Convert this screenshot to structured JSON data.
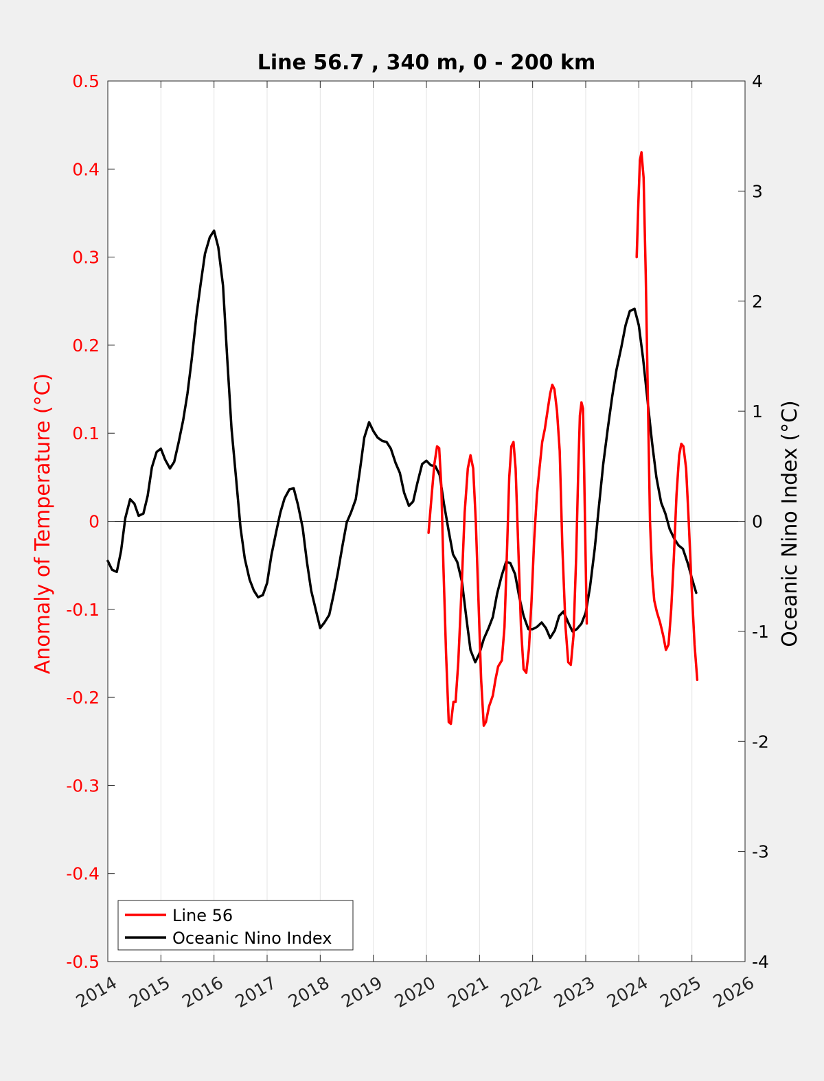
{
  "colors": {
    "background": "#f0f0f0",
    "plot_background": "#ffffff",
    "line56": "#ff0000",
    "oni": "#000000",
    "grid": "#e3e3e3",
    "left_axis": "#ff0000",
    "right_axis": "#000000"
  },
  "chart_data": {
    "type": "line",
    "title": "Line 56.7 , 340 m, 0 - 200 km",
    "ylabel_left": "Anomaly of Temperature (°C)",
    "ylabel_right": "Oceanic Nino Index (°C)",
    "xlabel": "",
    "xlim": [
      2014,
      2026
    ],
    "ylim_left": [
      -0.5,
      0.5
    ],
    "ylim_right": [
      -4,
      4
    ],
    "x_ticks": [
      "2014",
      "2015",
      "2016",
      "2017",
      "2018",
      "2019",
      "2020",
      "2021",
      "2022",
      "2023",
      "2024",
      "2025",
      "2026"
    ],
    "y_left_ticks": [
      "-0.5",
      "-0.4",
      "-0.3",
      "-0.2",
      "-0.1",
      "0",
      "0.1",
      "0.2",
      "0.3",
      "0.4",
      "0.5"
    ],
    "y_right_ticks": [
      "-4",
      "-3",
      "-2",
      "-1",
      "0",
      "1",
      "2",
      "3",
      "4"
    ],
    "grid": "vertical",
    "zero_line": true,
    "legend_position": "bottom-left",
    "series": [
      {
        "name": "Line 56",
        "axis": "left",
        "segments": [
          [
            [
              2020.04,
              -0.013
            ],
            [
              2020.1,
              0.03
            ],
            [
              2020.15,
              0.065
            ],
            [
              2020.2,
              0.085
            ],
            [
              2020.24,
              0.083
            ],
            [
              2020.28,
              0.04
            ],
            [
              2020.32,
              -0.05
            ],
            [
              2020.37,
              -0.15
            ],
            [
              2020.42,
              -0.228
            ],
            [
              2020.46,
              -0.23
            ],
            [
              2020.51,
              -0.205
            ],
            [
              2020.55,
              -0.205
            ],
            [
              2020.6,
              -0.16
            ],
            [
              2020.66,
              -0.08
            ],
            [
              2020.72,
              0.01
            ],
            [
              2020.78,
              0.06
            ],
            [
              2020.83,
              0.075
            ],
            [
              2020.88,
              0.06
            ],
            [
              2020.93,
              0.0
            ],
            [
              2020.98,
              -0.09
            ],
            [
              2021.03,
              -0.18
            ],
            [
              2021.08,
              -0.232
            ],
            [
              2021.12,
              -0.228
            ],
            [
              2021.18,
              -0.21
            ],
            [
              2021.25,
              -0.198
            ],
            [
              2021.3,
              -0.18
            ],
            [
              2021.35,
              -0.165
            ],
            [
              2021.42,
              -0.158
            ],
            [
              2021.47,
              -0.12
            ],
            [
              2021.52,
              -0.03
            ],
            [
              2021.56,
              0.05
            ],
            [
              2021.6,
              0.085
            ],
            [
              2021.64,
              0.09
            ],
            [
              2021.68,
              0.06
            ],
            [
              2021.73,
              -0.03
            ],
            [
              2021.78,
              -0.12
            ],
            [
              2021.83,
              -0.168
            ],
            [
              2021.88,
              -0.172
            ],
            [
              2021.93,
              -0.145
            ],
            [
              2021.98,
              -0.09
            ],
            [
              2022.03,
              -0.02
            ],
            [
              2022.08,
              0.03
            ],
            [
              2022.13,
              0.06
            ],
            [
              2022.18,
              0.09
            ],
            [
              2022.23,
              0.105
            ],
            [
              2022.28,
              0.125
            ],
            [
              2022.33,
              0.145
            ],
            [
              2022.37,
              0.155
            ],
            [
              2022.41,
              0.15
            ],
            [
              2022.46,
              0.125
            ],
            [
              2022.51,
              0.08
            ],
            [
              2022.56,
              -0.03
            ],
            [
              2022.62,
              -0.12
            ],
            [
              2022.67,
              -0.16
            ],
            [
              2022.72,
              -0.163
            ],
            [
              2022.77,
              -0.13
            ],
            [
              2022.82,
              -0.04
            ],
            [
              2022.86,
              0.06
            ],
            [
              2022.89,
              0.12
            ],
            [
              2022.92,
              0.135
            ],
            [
              2022.95,
              0.128
            ],
            [
              2022.98,
              0.02
            ],
            [
              2023.02,
              -0.116
            ]
          ],
          [
            [
              2023.96,
              0.3
            ],
            [
              2023.99,
              0.36
            ],
            [
              2024.02,
              0.41
            ],
            [
              2024.05,
              0.419
            ],
            [
              2024.09,
              0.39
            ],
            [
              2024.13,
              0.28
            ],
            [
              2024.17,
              0.14
            ],
            [
              2024.21,
              0.0
            ],
            [
              2024.25,
              -0.06
            ],
            [
              2024.29,
              -0.09
            ],
            [
              2024.34,
              -0.103
            ],
            [
              2024.4,
              -0.115
            ],
            [
              2024.46,
              -0.13
            ],
            [
              2024.51,
              -0.146
            ],
            [
              2024.56,
              -0.14
            ],
            [
              2024.61,
              -0.1
            ],
            [
              2024.66,
              -0.04
            ],
            [
              2024.71,
              0.03
            ],
            [
              2024.76,
              0.075
            ],
            [
              2024.8,
              0.088
            ],
            [
              2024.84,
              0.085
            ],
            [
              2024.89,
              0.06
            ],
            [
              2024.94,
              0.0
            ],
            [
              2024.99,
              -0.07
            ],
            [
              2025.05,
              -0.14
            ],
            [
              2025.1,
              -0.18
            ]
          ]
        ]
      },
      {
        "name": "Oceanic Nino Index",
        "axis": "right",
        "x": [
          2014.0,
          2014.08,
          2014.17,
          2014.25,
          2014.33,
          2014.42,
          2014.5,
          2014.58,
          2014.67,
          2014.75,
          2014.83,
          2014.92,
          2015.0,
          2015.08,
          2015.17,
          2015.25,
          2015.33,
          2015.42,
          2015.5,
          2015.58,
          2015.67,
          2015.75,
          2015.83,
          2015.92,
          2016.0,
          2016.08,
          2016.17,
          2016.25,
          2016.33,
          2016.42,
          2016.5,
          2016.58,
          2016.67,
          2016.75,
          2016.83,
          2016.92,
          2017.0,
          2017.08,
          2017.17,
          2017.25,
          2017.33,
          2017.42,
          2017.5,
          2017.58,
          2017.67,
          2017.75,
          2017.83,
          2017.92,
          2018.0,
          2018.08,
          2018.17,
          2018.25,
          2018.33,
          2018.42,
          2018.5,
          2018.58,
          2018.67,
          2018.75,
          2018.83,
          2018.92,
          2019.0,
          2019.08,
          2019.17,
          2019.25,
          2019.33,
          2019.42,
          2019.5,
          2019.58,
          2019.67,
          2019.75,
          2019.83,
          2019.92,
          2020.0,
          2020.08,
          2020.17,
          2020.25,
          2020.33,
          2020.42,
          2020.5,
          2020.58,
          2020.67,
          2020.75,
          2020.83,
          2020.92,
          2021.0,
          2021.08,
          2021.17,
          2021.25,
          2021.33,
          2021.42,
          2021.5,
          2021.58,
          2021.67,
          2021.75,
          2021.83,
          2021.92,
          2022.0,
          2022.08,
          2022.17,
          2022.25,
          2022.33,
          2022.42,
          2022.5,
          2022.58,
          2022.67,
          2022.75,
          2022.83,
          2022.92,
          2023.0,
          2023.08,
          2023.17,
          2023.25,
          2023.33,
          2023.42,
          2023.5,
          2023.58,
          2023.67,
          2023.75,
          2023.83,
          2023.92,
          2024.0,
          2024.08,
          2024.17,
          2024.25,
          2024.33,
          2024.42,
          2024.5,
          2024.58,
          2024.67,
          2024.75,
          2024.83,
          2024.92,
          2025.0,
          2025.08
        ],
        "values": [
          -0.36,
          -0.44,
          -0.46,
          -0.27,
          0.03,
          0.2,
          0.16,
          0.05,
          0.07,
          0.23,
          0.49,
          0.63,
          0.66,
          0.56,
          0.48,
          0.54,
          0.71,
          0.92,
          1.16,
          1.47,
          1.87,
          2.16,
          2.43,
          2.58,
          2.64,
          2.49,
          2.14,
          1.47,
          0.84,
          0.37,
          -0.06,
          -0.34,
          -0.53,
          -0.63,
          -0.69,
          -0.67,
          -0.56,
          -0.31,
          -0.1,
          0.08,
          0.21,
          0.29,
          0.3,
          0.15,
          -0.06,
          -0.37,
          -0.63,
          -0.81,
          -0.97,
          -0.92,
          -0.85,
          -0.67,
          -0.47,
          -0.22,
          -0.01,
          0.08,
          0.2,
          0.47,
          0.76,
          0.9,
          0.82,
          0.76,
          0.73,
          0.72,
          0.66,
          0.53,
          0.44,
          0.26,
          0.14,
          0.18,
          0.35,
          0.52,
          0.55,
          0.51,
          0.5,
          0.42,
          0.16,
          -0.09,
          -0.3,
          -0.37,
          -0.55,
          -0.87,
          -1.17,
          -1.28,
          -1.2,
          -1.07,
          -0.97,
          -0.87,
          -0.66,
          -0.49,
          -0.37,
          -0.38,
          -0.48,
          -0.69,
          -0.86,
          -0.98,
          -0.98,
          -0.96,
          -0.92,
          -0.97,
          -1.06,
          -0.99,
          -0.86,
          -0.82,
          -0.92,
          -1.0,
          -0.98,
          -0.93,
          -0.83,
          -0.6,
          -0.25,
          0.14,
          0.52,
          0.86,
          1.14,
          1.38,
          1.58,
          1.78,
          1.91,
          1.93,
          1.78,
          1.48,
          1.07,
          0.71,
          0.4,
          0.17,
          0.07,
          -0.07,
          -0.16,
          -0.22,
          -0.25,
          -0.38,
          -0.52,
          -0.65
        ]
      }
    ]
  },
  "legend": [
    {
      "label": "Line 56",
      "color": "#ff0000"
    },
    {
      "label": "Oceanic Nino Index",
      "color": "#000000"
    }
  ]
}
